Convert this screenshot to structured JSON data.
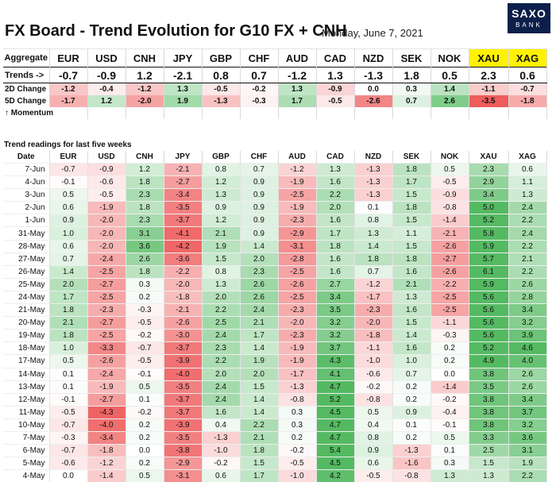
{
  "header": {
    "title": "FX Board - Trend Evolution for G10 FX + CNH",
    "date": "Monday, June 7, 2021",
    "logo_line1": "SAXO",
    "logo_line2": "BANK"
  },
  "currencies": [
    "EUR",
    "USD",
    "CNH",
    "JPY",
    "GBP",
    "CHF",
    "AUD",
    "CAD",
    "NZD",
    "SEK",
    "NOK",
    "XAU",
    "XAG"
  ],
  "summary": {
    "aggregate_label": "Aggregate",
    "trends_label": "Trends ->",
    "trends": [
      -0.7,
      -0.9,
      1.2,
      -2.1,
      0.8,
      0.7,
      -1.2,
      1.3,
      -1.3,
      1.8,
      0.5,
      2.3,
      0.6
    ],
    "change_2d_label": "2D Change",
    "change_2d": [
      -1.2,
      -0.4,
      -1.2,
      1.3,
      -0.5,
      -0.2,
      1.3,
      -0.9,
      0.0,
      0.3,
      1.4,
      -1.1,
      -0.7
    ],
    "change_5d_label": "5D Change",
    "change_5d": [
      -1.7,
      1.2,
      -2.0,
      1.9,
      -1.3,
      -0.3,
      1.7,
      -0.5,
      -2.6,
      0.7,
      2.6,
      -3.5,
      -1.8
    ],
    "momentum_label": "↑ Momentum"
  },
  "history": {
    "caption": "Trend readings for last five weeks",
    "date_label": "Date",
    "rows": [
      {
        "date": "7-Jun",
        "v": [
          -0.7,
          -0.9,
          1.2,
          -2.1,
          0.8,
          0.7,
          -1.2,
          1.3,
          -1.3,
          1.8,
          0.5,
          2.3,
          0.6
        ]
      },
      {
        "date": "4-Jun",
        "v": [
          -0.1,
          -0.6,
          1.8,
          -2.7,
          1.2,
          0.9,
          -1.9,
          1.6,
          -1.3,
          1.7,
          -0.5,
          2.9,
          1.1
        ]
      },
      {
        "date": "3-Jun",
        "v": [
          0.5,
          -0.5,
          2.3,
          -3.4,
          1.3,
          0.9,
          -2.5,
          2.2,
          -1.3,
          1.5,
          -0.9,
          3.4,
          1.3
        ]
      },
      {
        "date": "2-Jun",
        "v": [
          0.6,
          -1.9,
          1.8,
          -3.5,
          0.9,
          0.9,
          -1.9,
          2.0,
          0.1,
          1.8,
          -0.8,
          5.0,
          2.4
        ]
      },
      {
        "date": "1-Jun",
        "v": [
          0.9,
          -2.0,
          2.3,
          -3.7,
          1.2,
          0.9,
          -2.3,
          1.6,
          0.8,
          1.5,
          -1.4,
          5.2,
          2.2
        ]
      },
      {
        "date": "31-May",
        "v": [
          1.0,
          -2.0,
          3.1,
          -4.1,
          2.1,
          0.9,
          -2.9,
          1.7,
          1.3,
          1.1,
          -2.1,
          5.8,
          2.4
        ]
      },
      {
        "date": "28-May",
        "v": [
          0.6,
          -2.0,
          3.6,
          -4.2,
          1.9,
          1.4,
          -3.1,
          1.8,
          1.4,
          1.5,
          -2.6,
          5.9,
          2.2
        ]
      },
      {
        "date": "27-May",
        "v": [
          0.7,
          -2.4,
          2.6,
          -3.6,
          1.5,
          2.0,
          -2.8,
          1.6,
          1.8,
          1.8,
          -2.7,
          5.7,
          2.1
        ]
      },
      {
        "date": "26-May",
        "v": [
          1.4,
          -2.5,
          1.8,
          -2.2,
          0.8,
          2.3,
          -2.5,
          1.6,
          0.7,
          1.6,
          -2.6,
          6.1,
          2.2
        ]
      },
      {
        "date": "25-May",
        "v": [
          2.0,
          -2.7,
          0.3,
          -2.0,
          1.3,
          2.6,
          -2.6,
          2.7,
          -1.2,
          2.1,
          -2.2,
          5.9,
          2.6
        ]
      },
      {
        "date": "24-May",
        "v": [
          1.7,
          -2.5,
          0.2,
          -1.8,
          2.0,
          2.6,
          -2.5,
          3.4,
          -1.7,
          1.3,
          -2.5,
          5.6,
          2.8
        ]
      },
      {
        "date": "21-May",
        "v": [
          1.8,
          -2.3,
          -0.3,
          -2.1,
          2.2,
          2.4,
          -2.3,
          3.5,
          -2.3,
          1.6,
          -2.5,
          5.6,
          3.4
        ]
      },
      {
        "date": "20-May",
        "v": [
          2.1,
          -2.7,
          -0.5,
          -2.6,
          2.5,
          2.1,
          -2.0,
          3.2,
          -2.0,
          1.5,
          -1.1,
          5.6,
          3.2
        ]
      },
      {
        "date": "19-May",
        "v": [
          1.8,
          -2.5,
          -0.2,
          -3.0,
          2.4,
          1.7,
          -2.3,
          3.2,
          -1.8,
          1.4,
          -0.3,
          5.6,
          3.9
        ]
      },
      {
        "date": "18-May",
        "v": [
          1.0,
          -3.3,
          -0.7,
          -3.7,
          2.3,
          1.4,
          -1.9,
          3.7,
          -1.1,
          1.6,
          0.2,
          5.2,
          4.6
        ]
      },
      {
        "date": "17-May",
        "v": [
          0.5,
          -2.6,
          -0.5,
          -3.9,
          2.2,
          1.9,
          -1.9,
          4.3,
          -1.0,
          1.0,
          0.2,
          4.9,
          4.0
        ]
      },
      {
        "date": "14-May",
        "v": [
          0.1,
          -2.4,
          -0.1,
          -4.0,
          2.0,
          2.0,
          -1.7,
          4.1,
          -0.6,
          0.7,
          0.0,
          3.8,
          2.6
        ]
      },
      {
        "date": "13-May",
        "v": [
          0.1,
          -1.9,
          0.5,
          -3.5,
          2.4,
          1.5,
          -1.3,
          4.7,
          -0.2,
          0.2,
          -1.4,
          3.5,
          2.6
        ]
      },
      {
        "date": "12-May",
        "v": [
          -0.1,
          -2.7,
          0.1,
          -3.7,
          2.4,
          1.4,
          -0.8,
          5.2,
          -0.8,
          0.2,
          -0.2,
          3.8,
          3.4
        ]
      },
      {
        "date": "11-May",
        "v": [
          -0.5,
          -4.3,
          -0.2,
          -3.7,
          1.6,
          1.4,
          0.3,
          4.5,
          0.5,
          0.9,
          -0.4,
          3.8,
          3.7
        ]
      },
      {
        "date": "10-May",
        "v": [
          -0.7,
          -4.0,
          0.2,
          -3.9,
          0.4,
          2.2,
          0.3,
          4.7,
          0.4,
          0.1,
          -0.1,
          3.8,
          3.2
        ]
      },
      {
        "date": "7-May",
        "v": [
          -0.3,
          -3.4,
          0.2,
          -3.5,
          -1.3,
          2.1,
          0.2,
          4.7,
          0.8,
          0.2,
          0.5,
          3.3,
          3.6
        ]
      },
      {
        "date": "6-May",
        "v": [
          -0.7,
          -1.8,
          0.0,
          -3.8,
          -1.0,
          1.8,
          -0.2,
          5.4,
          0.9,
          -1.3,
          0.1,
          2.5,
          3.1
        ]
      },
      {
        "date": "5-May",
        "v": [
          -0.6,
          -1.2,
          0.2,
          -2.9,
          -0.2,
          1.5,
          -0.5,
          4.5,
          0.6,
          -1.6,
          0.3,
          1.5,
          1.9
        ]
      },
      {
        "date": "4-May",
        "v": [
          0.0,
          -1.4,
          0.5,
          -3.1,
          0.6,
          1.7,
          -1.0,
          4.2,
          -0.5,
          -0.8,
          1.3,
          1.3,
          2.2
        ]
      }
    ]
  },
  "colors": {
    "negative": "#ee5a5a",
    "positive": "#4fb85f",
    "highlight": "#fff200"
  }
}
